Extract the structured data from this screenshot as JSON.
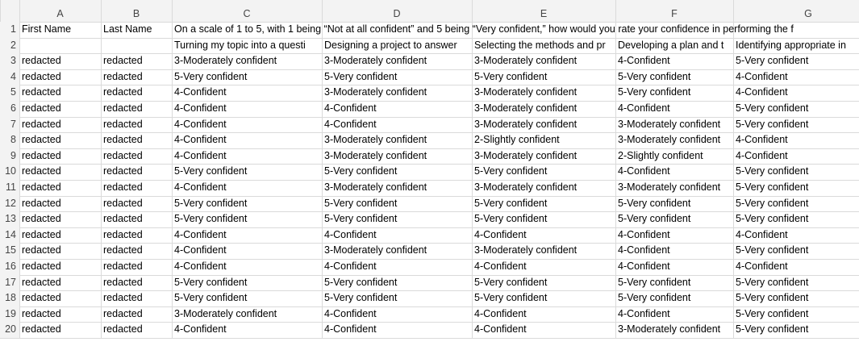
{
  "column_headers": [
    "A",
    "B",
    "C",
    "D",
    "E",
    "F",
    "G"
  ],
  "rows": [
    {
      "number": 1,
      "cells": {
        "A": "First Name",
        "B": "Last Name",
        "C": "On a scale of 1 to 5, with 1 being “Not at all confident” and 5 being “Very confident,” how would you rate your confidence in performing the f"
      }
    },
    {
      "number": 2,
      "cells": {
        "C": "Turning my topic into a questi",
        "D": "Designing a project to answer",
        "E": "Selecting the methods and pr",
        "F": "Developing a plan and t",
        "G": "Identifying appropriate in"
      }
    },
    {
      "number": 3,
      "cells": {
        "A": "redacted",
        "B": "redacted",
        "C": "3-Moderately confident",
        "D": "3-Moderately confident",
        "E": "3-Moderately confident",
        "F": "4-Confident",
        "G": "5-Very confident"
      }
    },
    {
      "number": 4,
      "cells": {
        "A": "redacted",
        "B": "redacted",
        "C": "5-Very confident",
        "D": "5-Very confident",
        "E": "5-Very confident",
        "F": "5-Very confident",
        "G": "4-Confident"
      }
    },
    {
      "number": 5,
      "cells": {
        "A": "redacted",
        "B": "redacted",
        "C": "4-Confident",
        "D": "3-Moderately confident",
        "E": "3-Moderately confident",
        "F": "5-Very confident",
        "G": "4-Confident"
      }
    },
    {
      "number": 6,
      "cells": {
        "A": "redacted",
        "B": "redacted",
        "C": "4-Confident",
        "D": "4-Confident",
        "E": "3-Moderately confident",
        "F": "4-Confident",
        "G": "5-Very confident"
      }
    },
    {
      "number": 7,
      "cells": {
        "A": "redacted",
        "B": "redacted",
        "C": "4-Confident",
        "D": "4-Confident",
        "E": "3-Moderately confident",
        "F": "3-Moderately confident",
        "G": "5-Very confident"
      }
    },
    {
      "number": 8,
      "cells": {
        "A": "redacted",
        "B": "redacted",
        "C": "4-Confident",
        "D": "3-Moderately confident",
        "E": "2-Slightly confident",
        "F": "3-Moderately confident",
        "G": "4-Confident"
      }
    },
    {
      "number": 9,
      "cells": {
        "A": "redacted",
        "B": "redacted",
        "C": "4-Confident",
        "D": "3-Moderately confident",
        "E": "3-Moderately confident",
        "F": "2-Slightly confident",
        "G": "4-Confident"
      }
    },
    {
      "number": 10,
      "cells": {
        "A": "redacted",
        "B": "redacted",
        "C": "5-Very confident",
        "D": "5-Very confident",
        "E": "5-Very confident",
        "F": "4-Confident",
        "G": "5-Very confident"
      }
    },
    {
      "number": 11,
      "cells": {
        "A": "redacted",
        "B": "redacted",
        "C": "4-Confident",
        "D": "3-Moderately confident",
        "E": "3-Moderately confident",
        "F": "3-Moderately confident",
        "G": "5-Very confident"
      }
    },
    {
      "number": 12,
      "cells": {
        "A": "redacted",
        "B": "redacted",
        "C": "5-Very confident",
        "D": "5-Very confident",
        "E": "5-Very confident",
        "F": "5-Very confident",
        "G": "5-Very confident"
      }
    },
    {
      "number": 13,
      "cells": {
        "A": "redacted",
        "B": "redacted",
        "C": "5-Very confident",
        "D": "5-Very confident",
        "E": "5-Very confident",
        "F": "5-Very confident",
        "G": "5-Very confident"
      }
    },
    {
      "number": 14,
      "cells": {
        "A": "redacted",
        "B": "redacted",
        "C": "4-Confident",
        "D": "4-Confident",
        "E": "4-Confident",
        "F": "4-Confident",
        "G": "4-Confident"
      }
    },
    {
      "number": 15,
      "cells": {
        "A": "redacted",
        "B": "redacted",
        "C": "4-Confident",
        "D": "3-Moderately confident",
        "E": "3-Moderately confident",
        "F": "4-Confident",
        "G": "5-Very confident"
      }
    },
    {
      "number": 16,
      "cells": {
        "A": "redacted",
        "B": "redacted",
        "C": "4-Confident",
        "D": "4-Confident",
        "E": "4-Confident",
        "F": "4-Confident",
        "G": "4-Confident"
      }
    },
    {
      "number": 17,
      "cells": {
        "A": "redacted",
        "B": "redacted",
        "C": "5-Very confident",
        "D": "5-Very confident",
        "E": "5-Very confident",
        "F": "5-Very confident",
        "G": "5-Very confident"
      }
    },
    {
      "number": 18,
      "cells": {
        "A": "redacted",
        "B": "redacted",
        "C": "5-Very confident",
        "D": "5-Very confident",
        "E": "5-Very confident",
        "F": "5-Very confident",
        "G": "5-Very confident"
      }
    },
    {
      "number": 19,
      "cells": {
        "A": "redacted",
        "B": "redacted",
        "C": "3-Moderately confident",
        "D": "4-Confident",
        "E": "4-Confident",
        "F": "4-Confident",
        "G": "5-Very confident"
      }
    },
    {
      "number": 20,
      "cells": {
        "A": "redacted",
        "B": "redacted",
        "C": "4-Confident",
        "D": "4-Confident",
        "E": "4-Confident",
        "F": "3-Moderately confident",
        "G": "5-Very confident"
      }
    }
  ]
}
